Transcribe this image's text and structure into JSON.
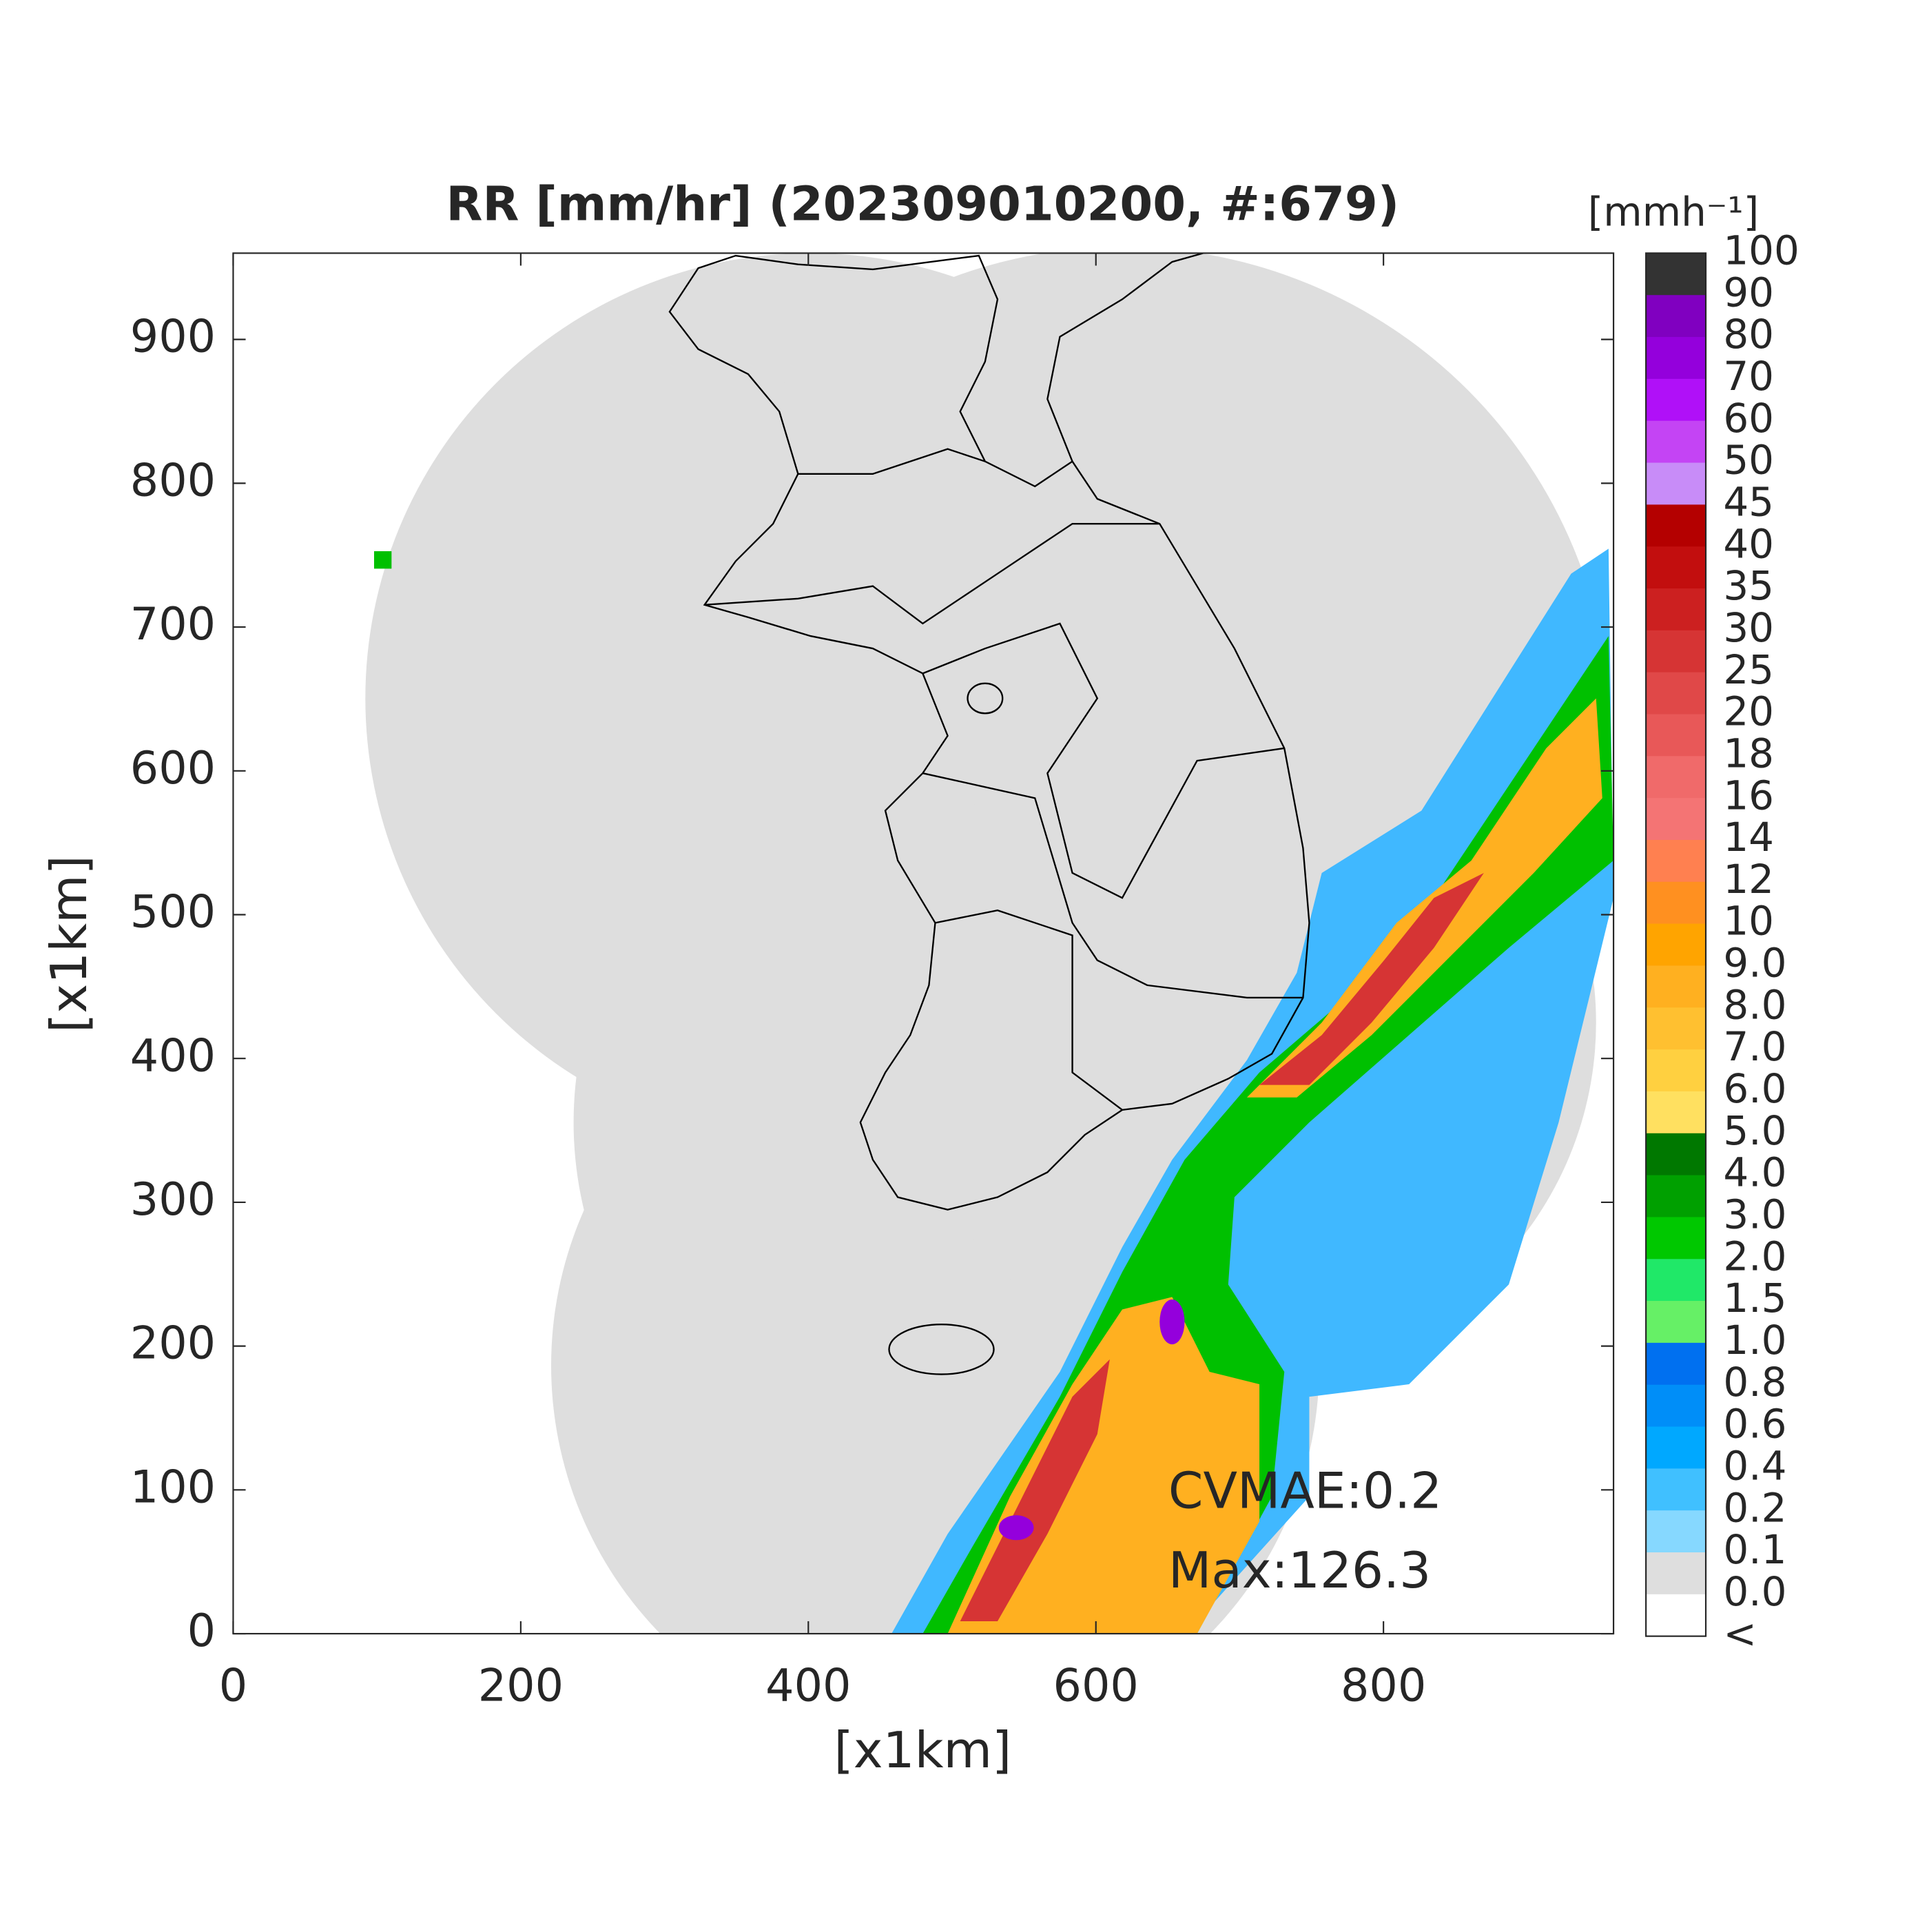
{
  "chart_data": {
    "type": "map",
    "title": "RR [mm/hr] (202309010200, #:679)",
    "x_label": "[x1km]",
    "y_label": "[x1km]",
    "xlim": [
      0,
      960
    ],
    "ylim": [
      0,
      960
    ],
    "xticks": [
      0,
      200,
      400,
      600,
      800
    ],
    "yticks": [
      0,
      100,
      200,
      300,
      400,
      500,
      600,
      700,
      800,
      900
    ],
    "annotations": [
      "CVMAE:0.2",
      "Max:126.3"
    ],
    "colorbar": {
      "title": "[mmh⁻¹]",
      "labels": [
        "100",
        "90",
        "80",
        "70",
        "60",
        "50",
        "45",
        "40",
        "35",
        "30",
        "25",
        "20",
        "18",
        "16",
        "14",
        "12",
        "10",
        "9.0",
        "8.0",
        "7.0",
        "6.0",
        "5.0",
        "4.0",
        "3.0",
        "2.0",
        "1.5",
        "1.0",
        "0.8",
        "0.6",
        "0.4",
        "0.2",
        "0.1",
        "0.0",
        "<"
      ],
      "colors": [
        "#333333",
        "#8000c0",
        "#9400dc",
        "#b010f8",
        "#c444f4",
        "#c88cf8",
        "#b40000",
        "#c20e0e",
        "#cc2020",
        "#d63434",
        "#e04848",
        "#e85858",
        "#f06a6a",
        "#f47474",
        "#ff8050",
        "#ff9020",
        "#ffa400",
        "#ffb020",
        "#ffc030",
        "#ffd040",
        "#ffe060",
        "#007800",
        "#00a000",
        "#00c800",
        "#20e868",
        "#66f066",
        "#0070f0",
        "#008ef8",
        "#00a8ff",
        "#40c0ff",
        "#86d8ff",
        "#dedede",
        "#ffffff"
      ]
    }
  }
}
